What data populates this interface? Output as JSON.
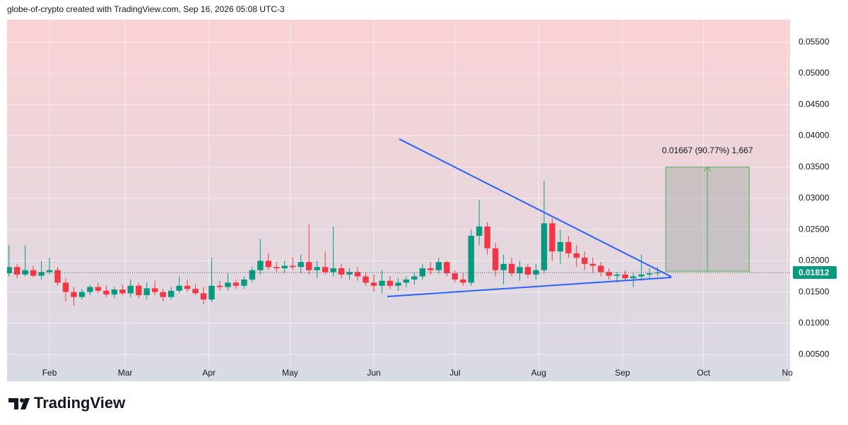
{
  "header": "globe-of-crypto created with TradingView.com, Sep 16, 2026 05:08 UTC-3",
  "logo": "TradingView",
  "chart_data": {
    "type": "candlestick",
    "x": [
      17,
      20,
      23,
      26,
      29,
      32,
      35,
      38,
      41,
      44,
      47,
      50,
      53,
      56,
      59,
      62,
      65,
      68,
      71,
      74,
      77,
      80,
      83,
      86,
      89,
      92,
      95,
      98,
      101,
      104,
      107,
      110,
      113,
      116,
      119,
      122,
      125,
      128,
      131,
      134,
      137,
      140,
      143,
      146,
      149,
      152,
      155,
      158,
      161,
      164,
      167,
      170,
      173,
      176,
      179,
      182,
      185,
      188,
      191,
      194,
      197,
      200,
      203,
      206,
      209,
      212,
      215,
      218,
      221,
      224,
      227,
      230,
      233,
      236,
      239,
      242,
      245,
      248,
      251,
      254,
      257
    ],
    "open": [
      0.018,
      0.019,
      0.0178,
      0.0185,
      0.0176,
      0.0182,
      0.0185,
      0.0165,
      0.015,
      0.0142,
      0.015,
      0.0158,
      0.0152,
      0.0146,
      0.0154,
      0.0148,
      0.016,
      0.0145,
      0.0156,
      0.015,
      0.0142,
      0.0152,
      0.016,
      0.0155,
      0.0148,
      0.0138,
      0.016,
      0.0158,
      0.0165,
      0.016,
      0.017,
      0.0185,
      0.02,
      0.019,
      0.0188,
      0.0192,
      0.019,
      0.0198,
      0.0185,
      0.019,
      0.0182,
      0.0188,
      0.0178,
      0.0182,
      0.0175,
      0.0165,
      0.016,
      0.0168,
      0.016,
      0.0165,
      0.017,
      0.0175,
      0.0188,
      0.0185,
      0.0198,
      0.018,
      0.017,
      0.0165,
      0.024,
      0.0255,
      0.022,
      0.0185,
      0.0195,
      0.018,
      0.019,
      0.0178,
      0.0185,
      0.026,
      0.0215,
      0.023,
      0.0212,
      0.0205,
      0.0195,
      0.0192,
      0.0182,
      0.0176,
      0.0178,
      0.0172,
      0.0175,
      0.0178,
      0.018
    ],
    "high": [
      0.0225,
      0.0195,
      0.0225,
      0.0192,
      0.02,
      0.0205,
      0.019,
      0.0172,
      0.0158,
      0.0155,
      0.0162,
      0.0165,
      0.016,
      0.0158,
      0.0162,
      0.017,
      0.0165,
      0.0165,
      0.0168,
      0.0155,
      0.0158,
      0.0175,
      0.017,
      0.0162,
      0.0158,
      0.0205,
      0.0168,
      0.018,
      0.017,
      0.0175,
      0.019,
      0.0235,
      0.0212,
      0.0198,
      0.02,
      0.0205,
      0.021,
      0.0258,
      0.02,
      0.0215,
      0.0255,
      0.0195,
      0.0188,
      0.019,
      0.0182,
      0.0178,
      0.0185,
      0.0175,
      0.0172,
      0.0175,
      0.0182,
      0.0195,
      0.0198,
      0.0205,
      0.02,
      0.0185,
      0.018,
      0.025,
      0.0298,
      0.0262,
      0.0228,
      0.021,
      0.0205,
      0.02,
      0.0195,
      0.0195,
      0.0328,
      0.0268,
      0.025,
      0.024,
      0.0225,
      0.0215,
      0.0205,
      0.0198,
      0.0188,
      0.0182,
      0.0185,
      0.018,
      0.021,
      0.0188,
      0.019
    ],
    "low": [
      0.0175,
      0.0172,
      0.0175,
      0.0174,
      0.017,
      0.0178,
      0.016,
      0.0135,
      0.0128,
      0.0138,
      0.0145,
      0.0148,
      0.0142,
      0.014,
      0.0145,
      0.0142,
      0.014,
      0.0138,
      0.0145,
      0.0135,
      0.0138,
      0.0148,
      0.015,
      0.0145,
      0.013,
      0.0134,
      0.0152,
      0.0152,
      0.0155,
      0.0155,
      0.0165,
      0.0178,
      0.0185,
      0.0182,
      0.018,
      0.0185,
      0.018,
      0.0178,
      0.0172,
      0.0178,
      0.0175,
      0.0172,
      0.017,
      0.0168,
      0.016,
      0.015,
      0.0148,
      0.0155,
      0.0152,
      0.0158,
      0.0162,
      0.017,
      0.0178,
      0.018,
      0.0175,
      0.0165,
      0.016,
      0.016,
      0.0225,
      0.021,
      0.0175,
      0.0162,
      0.0175,
      0.0168,
      0.0172,
      0.017,
      0.018,
      0.02,
      0.0195,
      0.0205,
      0.019,
      0.0185,
      0.018,
      0.0175,
      0.017,
      0.0165,
      0.0168,
      0.0158,
      0.0168,
      0.017,
      0.0175
    ],
    "close": [
      0.019,
      0.0178,
      0.0185,
      0.0176,
      0.0182,
      0.0185,
      0.0165,
      0.015,
      0.0142,
      0.015,
      0.0158,
      0.0152,
      0.0146,
      0.0154,
      0.0148,
      0.016,
      0.0145,
      0.0156,
      0.015,
      0.0142,
      0.0152,
      0.016,
      0.0155,
      0.0148,
      0.0138,
      0.016,
      0.0158,
      0.0165,
      0.016,
      0.017,
      0.0185,
      0.02,
      0.019,
      0.0188,
      0.0192,
      0.019,
      0.0198,
      0.0185,
      0.019,
      0.0182,
      0.0188,
      0.0178,
      0.0182,
      0.0175,
      0.0165,
      0.016,
      0.0168,
      0.016,
      0.0165,
      0.017,
      0.0175,
      0.0188,
      0.0185,
      0.0198,
      0.018,
      0.017,
      0.0165,
      0.024,
      0.0255,
      0.022,
      0.0185,
      0.0195,
      0.018,
      0.019,
      0.0178,
      0.0185,
      0.026,
      0.0215,
      0.023,
      0.0212,
      0.0205,
      0.0195,
      0.0192,
      0.0182,
      0.0176,
      0.0178,
      0.0172,
      0.0175,
      0.0178,
      0.018,
      0.01812
    ],
    "up_color": "#089981",
    "down_color": "#f23645",
    "xlim": [
      16.3,
      306
    ],
    "ylim": [
      0.0032,
      0.0586
    ],
    "xticks": [
      {
        "value": 32,
        "label": "Feb"
      },
      {
        "value": 60,
        "label": "Mar"
      },
      {
        "value": 91,
        "label": "Apr"
      },
      {
        "value": 121,
        "label": "May"
      },
      {
        "value": 152,
        "label": "Jun"
      },
      {
        "value": 182,
        "label": "Jul"
      },
      {
        "value": 213,
        "label": "Aug"
      },
      {
        "value": 244,
        "label": "Sep"
      },
      {
        "value": 274,
        "label": "Oct"
      },
      {
        "value": 305,
        "label": "No"
      }
    ],
    "yticks": [
      {
        "value": 0.005,
        "label": "0.00500"
      },
      {
        "value": 0.01,
        "label": "0.01000"
      },
      {
        "value": 0.015,
        "label": "0.01500"
      },
      {
        "value": 0.02,
        "label": "0.02000"
      },
      {
        "value": 0.025,
        "label": "0.02500"
      },
      {
        "value": 0.03,
        "label": "0.03000"
      },
      {
        "value": 0.035,
        "label": "0.03500"
      },
      {
        "value": 0.04,
        "label": "0.04000"
      },
      {
        "value": 0.045,
        "label": "0.04500"
      },
      {
        "value": 0.05,
        "label": "0.05000"
      },
      {
        "value": 0.055,
        "label": "0.05500"
      }
    ],
    "grid": true,
    "last_price": 0.01812,
    "trendlines": [
      {
        "x": [
          161.4,
          262.1
        ],
        "y": [
          0.0395,
          0.01744
        ],
        "color": "#2962ff"
      },
      {
        "x": [
          157.0,
          262.1
        ],
        "y": [
          0.01428,
          0.01733
        ],
        "color": "#2962ff"
      }
    ],
    "measure": {
      "x": [
        260.0,
        290.9
      ],
      "y": [
        0.01835,
        0.035
      ],
      "label": "0.01667 (90.77%) 1,667",
      "color": "#4caf50"
    }
  }
}
